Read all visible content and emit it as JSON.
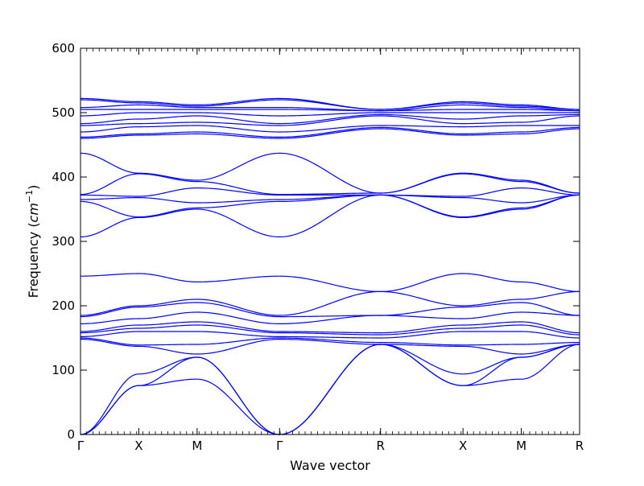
{
  "chart_data": {
    "type": "line",
    "title": "",
    "xlabel": "Wave vector",
    "ylabel_text": "Frequency (",
    "ylabel_unit_base": "cm",
    "ylabel_unit_exp": "−1",
    "ylabel_close": ")",
    "ylim": [
      0,
      600
    ],
    "yticks": [
      0,
      100,
      200,
      300,
      400,
      500,
      600
    ],
    "xticks": [
      {
        "label": "Γ",
        "pos": 0.0
      },
      {
        "label": "X",
        "pos": 0.5
      },
      {
        "label": "M",
        "pos": 1.0
      },
      {
        "label": "Γ",
        "pos": 1.7071
      },
      {
        "label": "R",
        "pos": 2.5731
      },
      {
        "label": "X",
        "pos": 3.2802
      },
      {
        "label": "M",
        "pos": 3.7802
      },
      {
        "label": "R",
        "pos": 4.2802
      }
    ],
    "line_color": "#0000ff",
    "grid": false,
    "series": [
      {
        "x": [
          0,
          0.5,
          1.0,
          1.7071,
          2.5731,
          3.2802,
          3.7802,
          4.2802
        ],
        "y": [
          0,
          76,
          86,
          0,
          140,
          76,
          86,
          140
        ]
      },
      {
        "x": [
          0,
          0.5,
          1.0,
          1.7071,
          2.5731,
          3.2802,
          3.7802,
          4.2802
        ],
        "y": [
          0,
          76,
          120,
          0,
          140,
          76,
          120,
          140
        ]
      },
      {
        "x": [
          0,
          0.5,
          1.0,
          1.7071,
          2.5731,
          3.2802,
          3.7802,
          4.2802
        ],
        "y": [
          0,
          94,
          120,
          0,
          140,
          94,
          120,
          140
        ]
      },
      {
        "x": [
          0,
          0.5,
          1.0,
          1.7071,
          2.5731,
          3.2802,
          3.7802,
          4.2802
        ],
        "y": [
          148,
          137,
          125,
          148,
          140,
          137,
          125,
          140
        ]
      },
      {
        "x": [
          0,
          0.5,
          1.0,
          1.7071,
          2.5731,
          3.2802,
          3.7802,
          4.2802
        ],
        "y": [
          150,
          139,
          140,
          150,
          143,
          139,
          140,
          143
        ]
      },
      {
        "x": [
          0,
          0.5,
          1.0,
          1.7071,
          2.5731,
          3.2802,
          3.7802,
          4.2802
        ],
        "y": [
          152,
          160,
          160,
          152,
          150,
          160,
          160,
          150
        ]
      },
      {
        "x": [
          0,
          0.5,
          1.0,
          1.7071,
          2.5731,
          3.2802,
          3.7802,
          4.2802
        ],
        "y": [
          158,
          165,
          170,
          158,
          155,
          165,
          170,
          155
        ]
      },
      {
        "x": [
          0,
          0.5,
          1.0,
          1.7071,
          2.5731,
          3.2802,
          3.7802,
          4.2802
        ],
        "y": [
          160,
          170,
          175,
          160,
          158,
          170,
          175,
          158
        ]
      },
      {
        "x": [
          0,
          0.5,
          1.0,
          1.7071,
          2.5731,
          3.2802,
          3.7802,
          4.2802
        ],
        "y": [
          172,
          180,
          190,
          172,
          185,
          180,
          190,
          185
        ]
      },
      {
        "x": [
          0,
          0.5,
          1.0,
          1.7071,
          2.5731,
          3.2802,
          3.7802,
          4.2802
        ],
        "y": [
          183,
          198,
          205,
          183,
          185,
          198,
          205,
          185
        ]
      },
      {
        "x": [
          0,
          0.5,
          1.0,
          1.7071,
          2.5731,
          3.2802,
          3.7802,
          4.2802
        ],
        "y": [
          185,
          200,
          210,
          185,
          222,
          200,
          210,
          222
        ]
      },
      {
        "x": [
          0,
          0.5,
          1.0,
          1.7071,
          2.5731,
          3.2802,
          3.7802,
          4.2802
        ],
        "y": [
          246,
          250,
          237,
          246,
          222,
          250,
          237,
          222
        ]
      },
      {
        "x": [
          0,
          0.5,
          1.0,
          1.7071,
          2.5731,
          3.2802,
          3.7802,
          4.2802
        ],
        "y": [
          307,
          337,
          350,
          307,
          372,
          337,
          350,
          372
        ]
      },
      {
        "x": [
          0,
          0.5,
          1.0,
          1.7071,
          2.5731,
          3.2802,
          3.7802,
          4.2802
        ],
        "y": [
          362,
          338,
          352,
          362,
          372,
          338,
          352,
          372
        ]
      },
      {
        "x": [
          0,
          0.5,
          1.0,
          1.7071,
          2.5731,
          3.2802,
          3.7802,
          4.2802
        ],
        "y": [
          365,
          368,
          360,
          365,
          372,
          368,
          360,
          372
        ]
      },
      {
        "x": [
          0,
          0.5,
          1.0,
          1.7071,
          2.5731,
          3.2802,
          3.7802,
          4.2802
        ],
        "y": [
          372,
          370,
          383,
          372,
          372,
          370,
          383,
          372
        ]
      },
      {
        "x": [
          0,
          0.5,
          1.0,
          1.7071,
          2.5731,
          3.2802,
          3.7802,
          4.2802
        ],
        "y": [
          373,
          405,
          393,
          373,
          375,
          405,
          393,
          375
        ]
      },
      {
        "x": [
          0,
          0.5,
          1.0,
          1.7071,
          2.5731,
          3.2802,
          3.7802,
          4.2802
        ],
        "y": [
          437,
          406,
          395,
          437,
          375,
          406,
          395,
          375
        ]
      },
      {
        "x": [
          0,
          0.5,
          1.0,
          1.7071,
          2.5731,
          3.2802,
          3.7802,
          4.2802
        ],
        "y": [
          460,
          465,
          467,
          460,
          475,
          465,
          467,
          475
        ]
      },
      {
        "x": [
          0,
          0.5,
          1.0,
          1.7071,
          2.5731,
          3.2802,
          3.7802,
          4.2802
        ],
        "y": [
          462,
          467,
          470,
          462,
          477,
          467,
          470,
          477
        ]
      },
      {
        "x": [
          0,
          0.5,
          1.0,
          1.7071,
          2.5731,
          3.2802,
          3.7802,
          4.2802
        ],
        "y": [
          470,
          478,
          480,
          470,
          480,
          478,
          480,
          480
        ]
      },
      {
        "x": [
          0,
          0.5,
          1.0,
          1.7071,
          2.5731,
          3.2802,
          3.7802,
          4.2802
        ],
        "y": [
          480,
          483,
          485,
          480,
          495,
          483,
          485,
          495
        ]
      },
      {
        "x": [
          0,
          0.5,
          1.0,
          1.7071,
          2.5731,
          3.2802,
          3.7802,
          4.2802
        ],
        "y": [
          483,
          490,
          495,
          483,
          497,
          490,
          495,
          497
        ]
      },
      {
        "x": [
          0,
          0.5,
          1.0,
          1.7071,
          2.5731,
          3.2802,
          3.7802,
          4.2802
        ],
        "y": [
          495,
          500,
          500,
          495,
          500,
          500,
          500,
          500
        ]
      },
      {
        "x": [
          0,
          0.5,
          1.0,
          1.7071,
          2.5731,
          3.2802,
          3.7802,
          4.2802
        ],
        "y": [
          505,
          505,
          505,
          505,
          503,
          505,
          505,
          503
        ]
      },
      {
        "x": [
          0,
          0.5,
          1.0,
          1.7071,
          2.5731,
          3.2802,
          3.7802,
          4.2802
        ],
        "y": [
          508,
          512,
          508,
          508,
          503,
          512,
          508,
          503
        ]
      },
      {
        "x": [
          0,
          0.5,
          1.0,
          1.7071,
          2.5731,
          3.2802,
          3.7802,
          4.2802
        ],
        "y": [
          520,
          515,
          510,
          520,
          505,
          515,
          510,
          505
        ]
      },
      {
        "x": [
          0,
          0.5,
          1.0,
          1.7071,
          2.5731,
          3.2802,
          3.7802,
          4.2802
        ],
        "y": [
          522,
          517,
          512,
          522,
          505,
          517,
          512,
          505
        ]
      }
    ]
  }
}
